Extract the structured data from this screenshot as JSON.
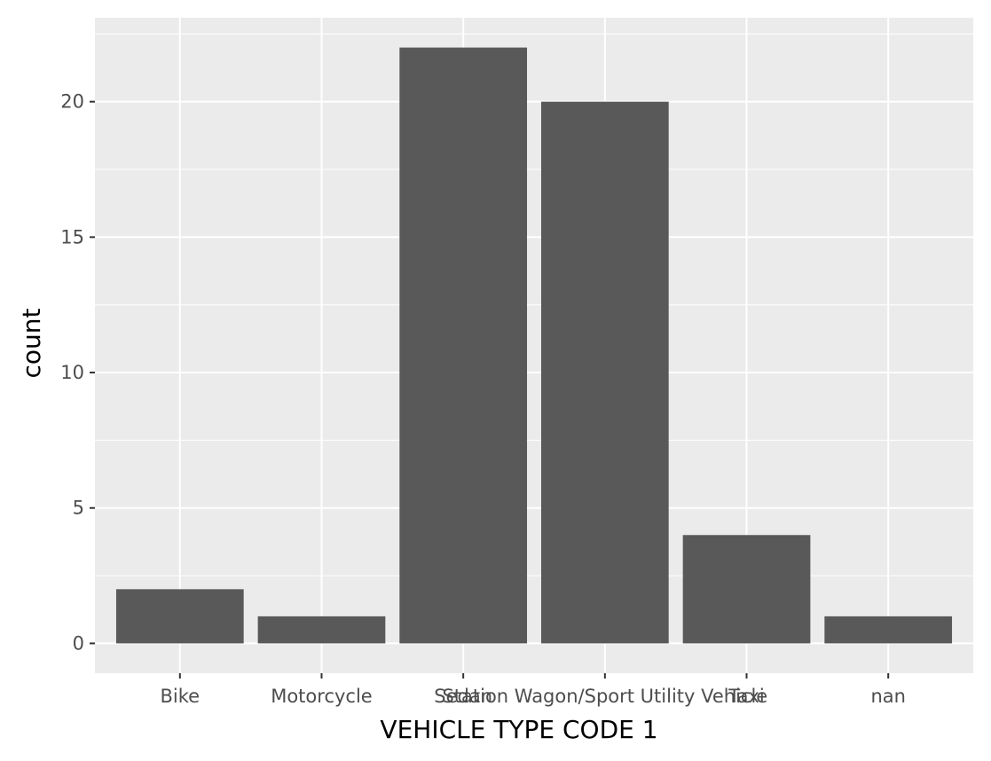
{
  "chart_data": {
    "type": "bar",
    "title": "",
    "xlabel": "VEHICLE TYPE CODE 1",
    "ylabel": "count",
    "categories": [
      "Bike",
      "Motorcycle",
      "Sedan",
      "Station Wagon/Sport Utility Vehicle",
      "Taxi",
      "nan"
    ],
    "values": [
      2,
      1,
      22,
      20,
      4,
      1
    ],
    "ylim": [
      -1.1,
      23.1
    ],
    "yticks": [
      0,
      5,
      10,
      15,
      20
    ],
    "grid": true,
    "legend": "none",
    "colors": {
      "panel": "#ebebeb",
      "grid": "#ffffff",
      "bar": "#595959",
      "tick": "#4d4d4d"
    }
  }
}
